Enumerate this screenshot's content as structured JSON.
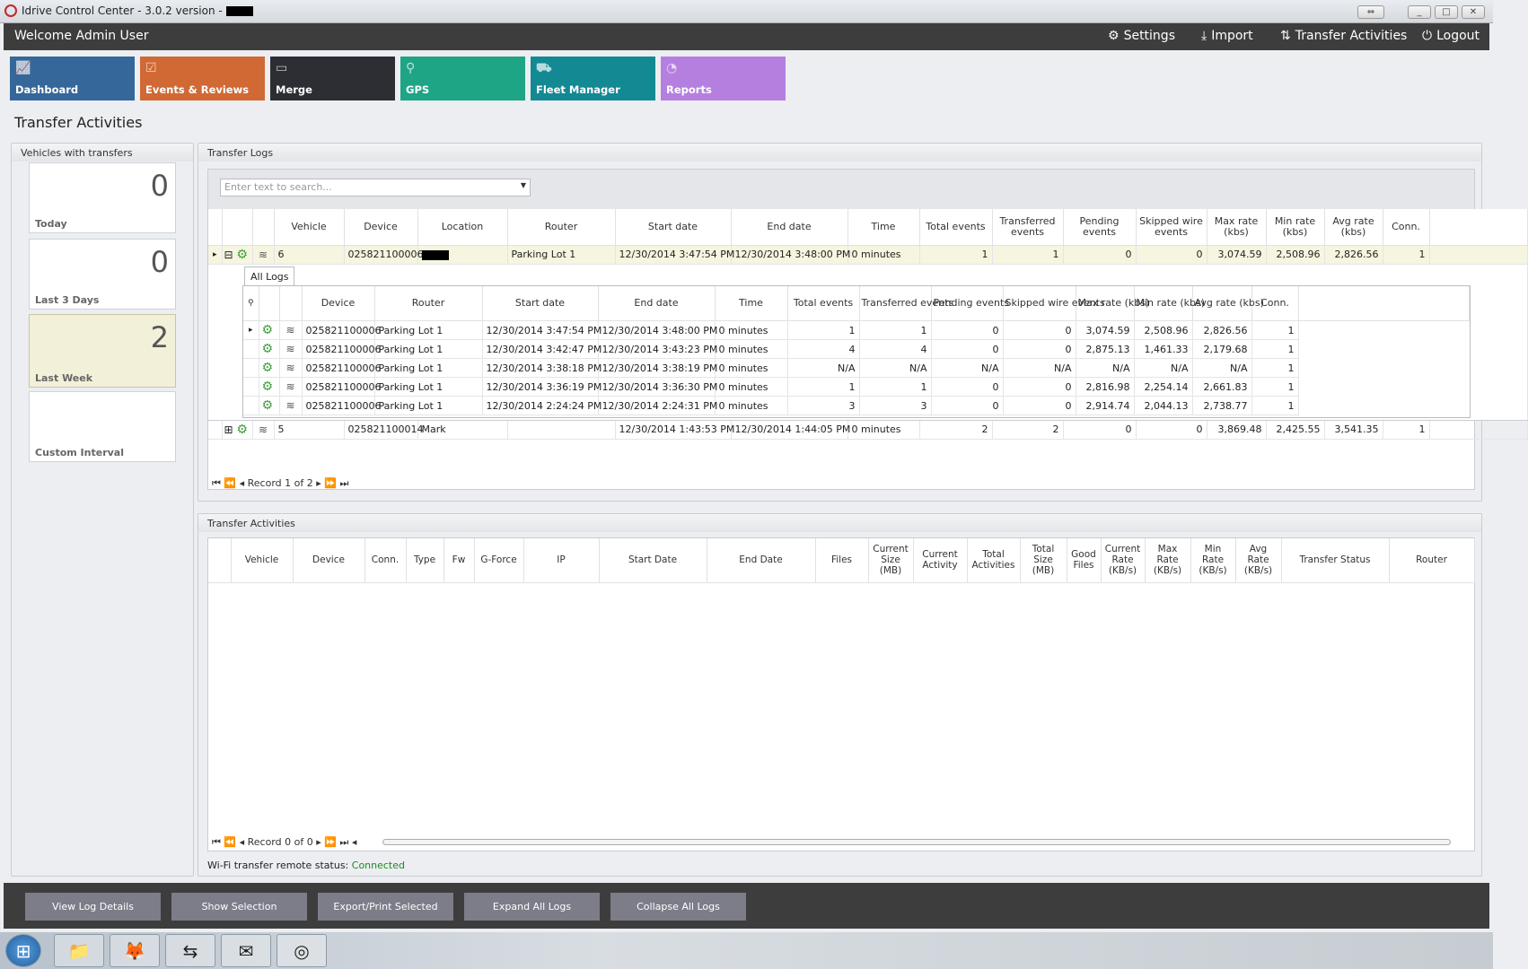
{
  "window": {
    "title": "Idrive Control Center - 3.0.2 version -",
    "controls": [
      "⇔",
      "_",
      "□",
      "✕"
    ]
  },
  "header": {
    "welcome": "Welcome Admin User",
    "nav": [
      {
        "label": "Settings",
        "icon": "gears-icon"
      },
      {
        "label": "Import",
        "icon": "download-icon"
      },
      {
        "label": "Transfer Activities",
        "icon": "transfer-icon"
      },
      {
        "label": "Logout",
        "icon": "power-icon"
      }
    ]
  },
  "tiles": [
    {
      "label": "Dashboard",
      "color": "#35679a",
      "icon": "chart-icon"
    },
    {
      "label": "Events & Reviews",
      "color": "#d06934",
      "icon": "clipboard-icon"
    },
    {
      "label": "Merge",
      "color": "#2c2e33",
      "icon": "merge-icon"
    },
    {
      "label": "GPS",
      "color": "#1ea586",
      "icon": "map-pin-icon"
    },
    {
      "label": "Fleet Manager",
      "color": "#128993",
      "icon": "trucks-icon"
    },
    {
      "label": "Reports",
      "color": "#b57fe0",
      "icon": "pie-icon"
    }
  ],
  "page_title": "Transfer Activities",
  "vehicles_panel": {
    "title": "Vehicles with transfers",
    "cards": [
      {
        "count": "0",
        "label": "Today"
      },
      {
        "count": "0",
        "label": "Last 3 Days"
      },
      {
        "count": "2",
        "label": "Last Week",
        "selected": true
      },
      {
        "count": "",
        "label": "Custom Interval"
      }
    ]
  },
  "transfer_logs": {
    "title": "Transfer Logs",
    "search_placeholder": "Enter text to search...",
    "columns": [
      "",
      "",
      "",
      "Vehicle",
      "Device",
      "Location",
      "Router",
      "Start date",
      "End date",
      "Time",
      "Total events",
      "Transferred events",
      "Pending events",
      "Skipped wire events",
      "Max rate (kbs)",
      "Min rate (kbs)",
      "Avg rate (kbs)",
      "Conn.",
      ""
    ],
    "rows": [
      {
        "expanded": true,
        "selected": true,
        "cells": [
          "6",
          "025821100006",
          "[redacted]",
          "Parking Lot 1",
          "12/30/2014 3:47:54 PM",
          "12/30/2014 3:48:00 PM",
          "0 minutes",
          "1",
          "1",
          "0",
          "0",
          "3,074.59",
          "2,508.96",
          "2,826.56",
          "1"
        ]
      },
      {
        "expanded": false,
        "cells": [
          "5",
          "025821100014",
          "Mark",
          "",
          "12/30/2014 1:43:53 PM",
          "12/30/2014 1:44:05 PM",
          "0 minutes",
          "2",
          "2",
          "0",
          "0",
          "3,869.48",
          "2,425.55",
          "3,541.35",
          "1"
        ]
      }
    ],
    "detail": {
      "tab": "All Logs",
      "columns": [
        "",
        "",
        "",
        "Device",
        "Router",
        "Start date",
        "End date",
        "Time",
        "Total events",
        "Transferred events",
        "Pending events",
        "Skipped wire events",
        "Max rate (kbs)",
        "Min rate (kbs)",
        "Avg rate (kbs)",
        "Conn.",
        ""
      ],
      "rows": [
        [
          "025821100006",
          "Parking Lot 1",
          "12/30/2014 3:47:54 PM",
          "12/30/2014 3:48:00 PM",
          "0 minutes",
          "1",
          "1",
          "0",
          "0",
          "3,074.59",
          "2,508.96",
          "2,826.56",
          "1"
        ],
        [
          "025821100006",
          "Parking Lot 1",
          "12/30/2014 3:42:47 PM",
          "12/30/2014 3:43:23 PM",
          "0 minutes",
          "4",
          "4",
          "0",
          "0",
          "2,875.13",
          "1,461.33",
          "2,179.68",
          "1"
        ],
        [
          "025821100006",
          "Parking Lot 1",
          "12/30/2014 3:38:18 PM",
          "12/30/2014 3:38:19 PM",
          "0 minutes",
          "N/A",
          "N/A",
          "N/A",
          "N/A",
          "N/A",
          "N/A",
          "N/A",
          "1"
        ],
        [
          "025821100006",
          "Parking Lot 1",
          "12/30/2014 3:36:19 PM",
          "12/30/2014 3:36:30 PM",
          "0 minutes",
          "1",
          "1",
          "0",
          "0",
          "2,816.98",
          "2,254.14",
          "2,661.83",
          "1"
        ],
        [
          "025821100006",
          "Parking Lot 1",
          "12/30/2014 2:24:24 PM",
          "12/30/2014 2:24:31 PM",
          "0 minutes",
          "3",
          "3",
          "0",
          "0",
          "2,914.74",
          "2,044.13",
          "2,738.77",
          "1"
        ]
      ]
    },
    "pager": "Record 1 of 2"
  },
  "transfer_activities": {
    "title": "Transfer Activities",
    "columns": [
      "",
      "Vehicle",
      "Device",
      "Conn.",
      "Type",
      "Fw",
      "G-Force",
      "IP",
      "Start Date",
      "End Date",
      "Files",
      "Current Size (MB)",
      "Current Activity",
      "Total Activities",
      "Total Size (MB)",
      "Good Files",
      "Current Rate (KB/s)",
      "Max Rate (KB/s)",
      "Min Rate (KB/s)",
      "Avg Rate (KB/s)",
      "Transfer Status",
      "Router"
    ],
    "pager": "Record 0 of 0",
    "status_label": "Wi-Fi transfer remote status:",
    "status_value": "Connected",
    "status_color": "#1e8a1e"
  },
  "buttons": [
    "View Log Details",
    "Show Selection",
    "Export/Print Selected",
    "Expand All Logs",
    "Collapse All Logs"
  ],
  "taskbar": [
    {
      "name": "start-button",
      "glyph": "⊞"
    },
    {
      "name": "explorer",
      "glyph": "📁"
    },
    {
      "name": "firefox",
      "glyph": "🦊"
    },
    {
      "name": "teamviewer",
      "glyph": "⇆"
    },
    {
      "name": "outlook",
      "glyph": "✉"
    },
    {
      "name": "idrive",
      "glyph": "◎"
    }
  ]
}
